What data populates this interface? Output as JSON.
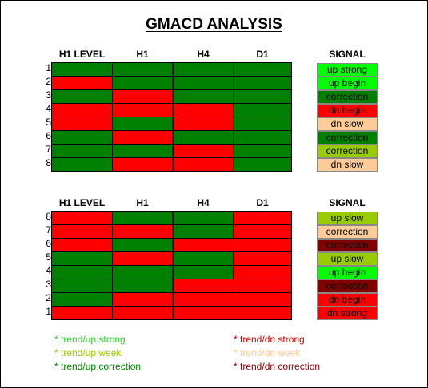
{
  "title": "GMACD ANALYSIS",
  "colors": {
    "red": "#ff0000",
    "green": "#008000",
    "lime": "#00ff00",
    "olive_green": "#99cc00",
    "peach": "#ffcc99",
    "maroon": "#800000"
  },
  "chart_data": [
    {
      "type": "table",
      "columns": [
        "H1 LEVEL",
        "H1",
        "H4",
        "D1"
      ],
      "signal_header": "SIGNAL",
      "rows": [
        {
          "num": "1",
          "cells": [
            "green",
            "green",
            "green",
            "green"
          ],
          "signal": "up strong",
          "signal_bg": "#00ff00",
          "signal_fg": "#000000"
        },
        {
          "num": "2",
          "cells": [
            "red",
            "green",
            "green",
            "green"
          ],
          "signal": "up begin",
          "signal_bg": "#00ff00",
          "signal_fg": "#000000"
        },
        {
          "num": "3",
          "cells": [
            "green",
            "red",
            "green",
            "green"
          ],
          "signal": "correction",
          "signal_bg": "#008000",
          "signal_fg": "#000000"
        },
        {
          "num": "4",
          "cells": [
            "red",
            "red",
            "red",
            "green"
          ],
          "signal": "dn begin",
          "signal_bg": "#ff0000",
          "signal_fg": "#000000"
        },
        {
          "num": "5",
          "cells": [
            "red",
            "green",
            "red",
            "green"
          ],
          "signal": "dn slow",
          "signal_bg": "#ffcc99",
          "signal_fg": "#000000"
        },
        {
          "num": "6",
          "cells": [
            "green",
            "red",
            "green",
            "green"
          ],
          "signal": "correction",
          "signal_bg": "#008000",
          "signal_fg": "#000000"
        },
        {
          "num": "7",
          "cells": [
            "green",
            "green",
            "red",
            "green"
          ],
          "signal": "correction",
          "signal_bg": "#99cc00",
          "signal_fg": "#000000"
        },
        {
          "num": "8",
          "cells": [
            "green",
            "red",
            "red",
            "green"
          ],
          "signal": "dn slow",
          "signal_bg": "#ffcc99",
          "signal_fg": "#000000"
        }
      ]
    },
    {
      "type": "table",
      "columns": [
        "H1 LEVEL",
        "H1",
        "H4",
        "D1"
      ],
      "signal_header": "SIGNAL",
      "rows": [
        {
          "num": "8",
          "cells": [
            "red",
            "green",
            "green",
            "red"
          ],
          "signal": "up slow",
          "signal_bg": "#99cc00",
          "signal_fg": "#000000"
        },
        {
          "num": "7",
          "cells": [
            "red",
            "red",
            "green",
            "red"
          ],
          "signal": "correction",
          "signal_bg": "#ffcc99",
          "signal_fg": "#000000"
        },
        {
          "num": "6",
          "cells": [
            "red",
            "green",
            "red",
            "red"
          ],
          "signal": "correction",
          "signal_bg": "#800000",
          "signal_fg": "#000000"
        },
        {
          "num": "5",
          "cells": [
            "green",
            "red",
            "green",
            "red"
          ],
          "signal": "up slow",
          "signal_bg": "#99cc00",
          "signal_fg": "#000000"
        },
        {
          "num": "4",
          "cells": [
            "green",
            "green",
            "green",
            "red"
          ],
          "signal": "up begin",
          "signal_bg": "#00ff00",
          "signal_fg": "#000000"
        },
        {
          "num": "3",
          "cells": [
            "green",
            "green",
            "red",
            "red"
          ],
          "signal": "correction",
          "signal_bg": "#800000",
          "signal_fg": "#000000"
        },
        {
          "num": "2",
          "cells": [
            "green",
            "red",
            "red",
            "red"
          ],
          "signal": "dn begin",
          "signal_bg": "#ff0000",
          "signal_fg": "#000000"
        },
        {
          "num": "1",
          "cells": [
            "red",
            "red",
            "red",
            "red"
          ],
          "signal": "dn strong",
          "signal_bg": "#ff0000",
          "signal_fg": "#000000"
        }
      ]
    }
  ],
  "legend": {
    "left": [
      {
        "text": "* trend/up strong",
        "color": "#33cc33"
      },
      {
        "text": "* trend/up week",
        "color": "#99cc00"
      },
      {
        "text": "* trend/up correction",
        "color": "#008000"
      }
    ],
    "right": [
      {
        "text": "* trend/dn strong",
        "color": "#cc0000"
      },
      {
        "text": "* trend/dn week",
        "color": "#ffcc99"
      },
      {
        "text": "* trend/dn correction",
        "color": "#800000"
      }
    ]
  }
}
